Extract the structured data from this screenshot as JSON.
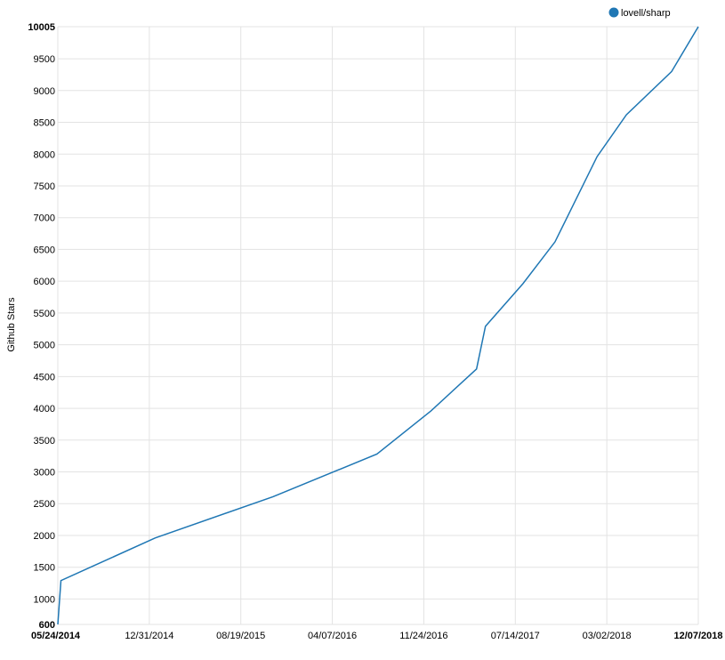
{
  "chart_data": {
    "type": "line",
    "ylabel": "Github Stars",
    "xlabel": "",
    "title": "",
    "legend_position": "top-right",
    "grid": true,
    "x_axis_type": "date",
    "xlim": [
      "2014-05-24",
      "2018-12-07"
    ],
    "ylim": [
      600,
      10005
    ],
    "yticks": [
      "600",
      "1000",
      "1500",
      "2000",
      "2500",
      "3000",
      "3500",
      "4000",
      "4500",
      "5000",
      "5500",
      "6000",
      "6500",
      "7000",
      "7500",
      "8000",
      "8500",
      "9000",
      "9500",
      "10005"
    ],
    "xticks": [
      "05/24/2014",
      "12/31/2014",
      "08/19/2015",
      "04/07/2016",
      "11/24/2016",
      "07/14/2017",
      "03/02/2018",
      "12/07/2018"
    ],
    "bold_ticks": [
      "600",
      "10005",
      "05/24/2014",
      "12/07/2018"
    ],
    "series": [
      {
        "name": "lovell/sharp",
        "color": "#1f77b4",
        "points": [
          [
            "2014-05-24",
            600
          ],
          [
            "2014-06-01",
            1290
          ],
          [
            "2015-01-31",
            1960
          ],
          [
            "2015-12-02",
            2610
          ],
          [
            "2016-08-27",
            3280
          ],
          [
            "2017-01-14",
            3960
          ],
          [
            "2017-05-12",
            4620
          ],
          [
            "2017-06-04",
            5290
          ],
          [
            "2017-09-09",
            5960
          ],
          [
            "2017-12-01",
            6620
          ],
          [
            "2018-03-20",
            7960
          ],
          [
            "2018-06-04",
            8620
          ],
          [
            "2018-09-29",
            9300
          ],
          [
            "2018-12-07",
            10005
          ]
        ]
      }
    ]
  }
}
